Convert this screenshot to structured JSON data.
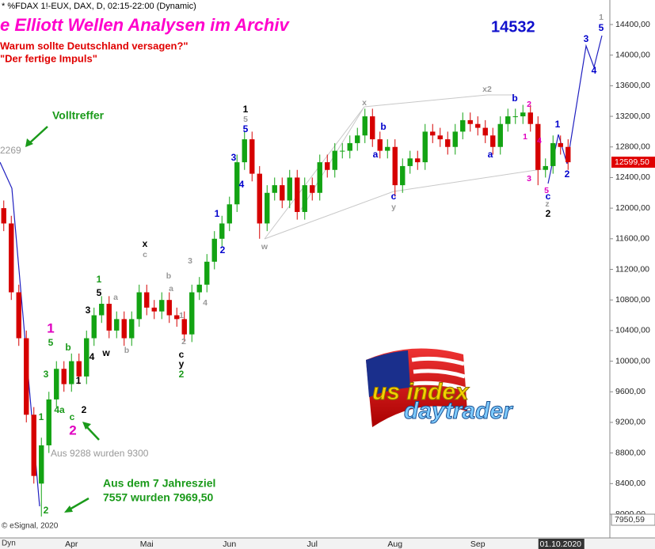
{
  "chart_data": {
    "type": "candlestick",
    "header": "* %FDAX 1!-EUX, DAX, D, 02:15-22:00 (Dynamic)",
    "title": "e Elliott Wellen Analysen im Archiv",
    "subtitle_lines": [
      "Warum sollte Deutschland versagen?\"",
      "\"Der fertige Impuls\""
    ],
    "target": "14532",
    "annotations": {
      "hit": "Volltreffer",
      "left_price": "2269",
      "aus": "Aus 9288 wurden 9300",
      "goal_line1": "Aus dem 7 Jahresziel",
      "goal_line2": "7557 wurden 7969,50",
      "copyright": "© eSignal, 2020",
      "dyn": "Dyn"
    },
    "price_tags": {
      "last": "12599,50",
      "low": "7950,59"
    },
    "logo": {
      "line1": "us index",
      "line2": "daytrader"
    },
    "categories": [
      null,
      null,
      null,
      null,
      null,
      null,
      null,
      null,
      null,
      "Apr",
      null,
      null,
      null,
      null,
      null,
      null,
      null,
      null,
      null,
      "Mai",
      null,
      null,
      null,
      null,
      null,
      null,
      null,
      null,
      null,
      null,
      "Jun",
      null,
      null,
      null,
      null,
      null,
      null,
      null,
      null,
      null,
      null,
      "Jul",
      null,
      null,
      null,
      null,
      null,
      null,
      null,
      null,
      null,
      null,
      "Aug",
      null,
      null,
      null,
      null,
      null,
      null,
      null,
      null,
      null,
      null,
      "Sep",
      null,
      null,
      null,
      null,
      null,
      null,
      null,
      null,
      null,
      null,
      "01.10.2020",
      null
    ],
    "open": [
      12000,
      11800,
      10900,
      10300,
      9300,
      8400,
      8900,
      9500,
      9900,
      9700,
      10000,
      9800,
      10300,
      10600,
      10750,
      10400,
      10550,
      10300,
      10550,
      10900,
      10700,
      10650,
      10800,
      10600,
      10550,
      10350,
      10900,
      11000,
      11300,
      11600,
      11800,
      12050,
      12600,
      12900,
      12450,
      11800,
      12200,
      12300,
      12100,
      12400,
      11950,
      12300,
      12200,
      12600,
      12500,
      12750,
      12750,
      12850,
      12950,
      13200,
      12900,
      12750,
      12800,
      12300,
      12550,
      12650,
      12600,
      13000,
      12950,
      12900,
      12800,
      13000,
      13150,
      13100,
      13050,
      12950,
      12800,
      13100,
      13200,
      13200,
      13250,
      13100,
      12500,
      12550,
      12850,
      12800
    ],
    "high": [
      12100,
      11900,
      11000,
      10400,
      9400,
      9000,
      9600,
      10000,
      10000,
      10100,
      10100,
      10400,
      10700,
      10850,
      10850,
      10650,
      10650,
      10650,
      11000,
      11000,
      10800,
      10900,
      10900,
      10700,
      10650,
      11000,
      11100,
      11400,
      11700,
      11900,
      12150,
      12700,
      13000,
      13000,
      12550,
      12300,
      12400,
      12400,
      12500,
      12500,
      12400,
      12400,
      12700,
      12700,
      12850,
      12850,
      12950,
      13050,
      13300,
      13300,
      13000,
      12900,
      12900,
      12650,
      12750,
      12750,
      13100,
      13100,
      13050,
      13000,
      13100,
      13250,
      13250,
      13200,
      13150,
      13050,
      13200,
      13300,
      13300,
      13350,
      13350,
      13200,
      12650,
      12950,
      12950,
      12900
    ],
    "low": [
      11700,
      10800,
      10200,
      9200,
      8400,
      7970,
      8800,
      9400,
      9600,
      9600,
      9700,
      9700,
      10200,
      10500,
      10300,
      10300,
      10200,
      10200,
      10450,
      10600,
      10550,
      10550,
      10500,
      10450,
      10250,
      10250,
      10800,
      10900,
      11200,
      11500,
      11700,
      11950,
      12500,
      12350,
      11600,
      11700,
      12100,
      12000,
      12000,
      11850,
      11850,
      12100,
      12100,
      12400,
      12400,
      12650,
      12650,
      12750,
      12850,
      12800,
      12650,
      12650,
      12150,
      12200,
      12450,
      12500,
      12500,
      12850,
      12800,
      12700,
      12700,
      12900,
      13000,
      12950,
      12850,
      12700,
      12700,
      13000,
      13100,
      13100,
      13000,
      12300,
      12400,
      12450,
      12700,
      12500
    ],
    "close": [
      11800,
      10900,
      10300,
      9300,
      8500,
      8900,
      9500,
      9900,
      9700,
      10000,
      9800,
      10300,
      10600,
      10750,
      10400,
      10550,
      10300,
      10550,
      10900,
      10700,
      10650,
      10800,
      10600,
      10550,
      10350,
      10900,
      11000,
      11300,
      11600,
      11800,
      12050,
      12600,
      12900,
      12450,
      11800,
      12200,
      12300,
      12100,
      12400,
      11950,
      12300,
      12200,
      12600,
      12500,
      12750,
      12750,
      12850,
      12950,
      13200,
      12900,
      12750,
      12800,
      12300,
      12550,
      12650,
      12600,
      13000,
      12950,
      12900,
      12800,
      13000,
      13150,
      13100,
      13050,
      12950,
      12800,
      13100,
      13200,
      13200,
      13250,
      13100,
      12500,
      12550,
      12850,
      12800,
      12600
    ],
    "up_color": "#13a313",
    "down_color": "#d60000",
    "ylim": [
      8000,
      14400
    ],
    "yticks": [
      {
        "value": 14400,
        "label": "14400,00"
      },
      {
        "value": 14000,
        "label": "14000,00"
      },
      {
        "value": 13600,
        "label": "13600,00"
      },
      {
        "value": 13200,
        "label": "13200,00"
      },
      {
        "value": 12800,
        "label": "12800,00"
      },
      {
        "value": 12400,
        "label": "12400,00"
      },
      {
        "value": 12000,
        "label": "12000,00"
      },
      {
        "value": 11600,
        "label": "11600,00"
      },
      {
        "value": 11200,
        "label": "11200,00"
      },
      {
        "value": 10800,
        "label": "10800,00"
      },
      {
        "value": 10400,
        "label": "10400,00"
      },
      {
        "value": 10000,
        "label": "10000,00"
      },
      {
        "value": 9600,
        "label": "9600,00"
      },
      {
        "value": 9200,
        "label": "9200,00"
      },
      {
        "value": 8800,
        "label": "8800,00"
      },
      {
        "value": 8400,
        "label": "8400,00"
      },
      {
        "value": 8000,
        "label": "8000,00"
      }
    ],
    "grid": false,
    "wave_labels": [
      {
        "text": "1",
        "color": "#1a9a1a"
      },
      {
        "text": "2",
        "color": "#1a9a1a"
      },
      {
        "text": "3",
        "color": "#1a9a1a"
      },
      {
        "text": "4a",
        "color": "#1a9a1a"
      },
      {
        "text": "5",
        "color": "#1a9a1a"
      },
      {
        "text": "b",
        "color": "#1a9a1a"
      },
      {
        "text": "c",
        "color": "#1a9a1a"
      },
      {
        "text": "1",
        "color": "#1a9a1a"
      },
      {
        "text": "2",
        "color": "#1a9a1a"
      },
      {
        "text": "1",
        "color": "#e000c0"
      },
      {
        "text": "2",
        "color": "#e000c0"
      },
      {
        "text": "1",
        "color": "#000000"
      },
      {
        "text": "2",
        "color": "#000000"
      },
      {
        "text": "3",
        "color": "#000000"
      },
      {
        "text": "4",
        "color": "#000000"
      },
      {
        "text": "5",
        "color": "#000000"
      },
      {
        "text": "w",
        "color": "#000000"
      },
      {
        "text": "x",
        "color": "#000000"
      },
      {
        "text": "c",
        "color": "#000000"
      },
      {
        "text": "y",
        "color": "#000000"
      },
      {
        "text": "1",
        "color": "#000000"
      },
      {
        "text": "2",
        "color": "#000000"
      },
      {
        "text": "a",
        "color": "#999999"
      },
      {
        "text": "b",
        "color": "#999999"
      },
      {
        "text": "c",
        "color": "#999999"
      },
      {
        "text": "b",
        "color": "#999999"
      },
      {
        "text": "a",
        "color": "#999999"
      },
      {
        "text": "1",
        "color": "#999999"
      },
      {
        "text": "2",
        "color": "#999999"
      },
      {
        "text": "3",
        "color": "#999999"
      },
      {
        "text": "4",
        "color": "#999999"
      },
      {
        "text": "5",
        "color": "#999999"
      },
      {
        "text": "x",
        "color": "#999999"
      },
      {
        "text": "w",
        "color": "#999999"
      },
      {
        "text": "y",
        "color": "#999999"
      },
      {
        "text": "x2",
        "color": "#999999"
      },
      {
        "text": "z",
        "color": "#999999"
      },
      {
        "text": "1",
        "color": "#999999"
      },
      {
        "text": "1",
        "color": "#0000cc"
      },
      {
        "text": "2",
        "color": "#0000cc"
      },
      {
        "text": "3",
        "color": "#0000cc"
      },
      {
        "text": "4",
        "color": "#0000cc"
      },
      {
        "text": "5",
        "color": "#0000cc"
      },
      {
        "text": "a",
        "color": "#0000cc"
      },
      {
        "text": "b",
        "color": "#0000cc"
      },
      {
        "text": "c",
        "color": "#0000cc"
      },
      {
        "text": "a",
        "color": "#0000cc"
      },
      {
        "text": "b",
        "color": "#0000cc"
      },
      {
        "text": "1",
        "color": "#0000cc"
      },
      {
        "text": "2",
        "color": "#0000cc"
      },
      {
        "text": "c",
        "color": "#0000cc"
      },
      {
        "text": "3",
        "color": "#0000cc"
      },
      {
        "text": "4",
        "color": "#0000cc"
      },
      {
        "text": "5",
        "color": "#0000cc"
      },
      {
        "text": "2",
        "color": "#e000c0"
      },
      {
        "text": "1",
        "color": "#e000c0"
      },
      {
        "text": "4",
        "color": "#e000c0"
      },
      {
        "text": "3",
        "color": "#e000c0"
      },
      {
        "text": "5",
        "color": "#e000c0"
      }
    ]
  }
}
